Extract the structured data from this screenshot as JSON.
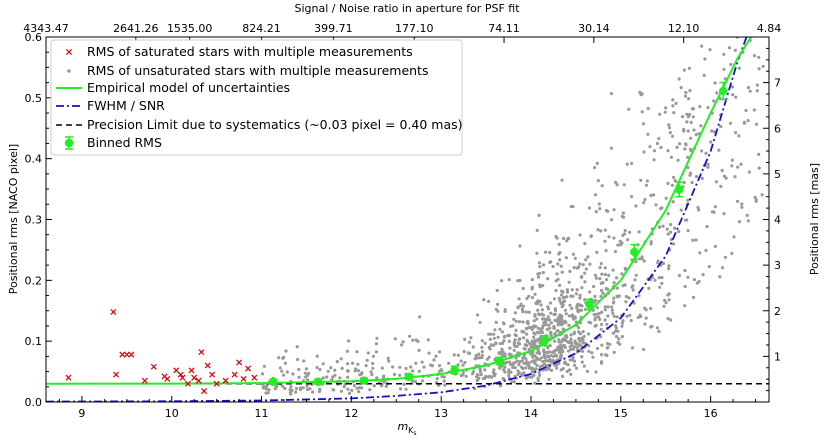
{
  "chart_data": {
    "type": "scatter",
    "title": "Signal / Noise ratio in aperture for PSF fit",
    "xlabel": "m_Ks",
    "xlabel_main": "m",
    "xlabel_sub": "K",
    "xlabel_subsub": "s",
    "ylabel": "Positional rms [NACO pixel]",
    "ylabel_right": "Positional rms [mas]",
    "xlim": [
      8.6,
      16.65
    ],
    "ylim": [
      0.0,
      0.6
    ],
    "ylim_right": [
      0.0,
      8.0
    ],
    "xticks": [
      9,
      10,
      11,
      12,
      13,
      14,
      15,
      16
    ],
    "yticks": [
      0.0,
      0.1,
      0.2,
      0.3,
      0.4,
      0.5,
      0.6
    ],
    "yticks_right": [
      1,
      2,
      3,
      4,
      5,
      6,
      7
    ],
    "top_axis": {
      "label": "Signal / Noise ratio in aperture for PSF fit",
      "tick_positions_mag": [
        8.6,
        9.6,
        10.2,
        11.0,
        11.8,
        12.7,
        13.7,
        14.7,
        15.7,
        16.65
      ],
      "tick_labels": [
        "4343.47",
        "2641.26",
        "1535.00",
        "824.21",
        "399.71",
        "177.10",
        "74.11",
        "30.14",
        "12.10",
        "4.84"
      ]
    },
    "legend": {
      "position": "top-left",
      "entries": [
        "RMS of saturated stars with multiple measurements",
        "RMS of unsaturated stars with multiple measurements",
        "Empirical model of uncertainties",
        "FWHM / SNR",
        "Precision Limit due to systematics (~0.03 pixel = 0.40 mas)",
        "Binned RMS"
      ]
    },
    "colors": {
      "saturated": "#dd0000",
      "unsaturated": "#999999",
      "empirical": "#22ee22",
      "fwhm": "#1111cc",
      "limit": "#000000",
      "binned": "#22ee22"
    },
    "series": [
      {
        "name": "RMS of saturated stars with multiple measurements",
        "type": "scatter",
        "x": [
          8.85,
          9.35,
          9.38,
          9.45,
          9.5,
          9.55,
          9.7,
          9.8,
          9.92,
          9.95,
          10.05,
          10.1,
          10.12,
          10.18,
          10.22,
          10.25,
          10.3,
          10.33,
          10.36,
          10.4,
          10.45,
          10.5,
          10.6,
          10.7,
          10.75,
          10.8,
          10.85,
          10.92
        ],
        "y": [
          0.04,
          0.148,
          0.045,
          0.078,
          0.078,
          0.078,
          0.035,
          0.058,
          0.042,
          0.038,
          0.052,
          0.045,
          0.04,
          0.03,
          0.052,
          0.04,
          0.035,
          0.082,
          0.018,
          0.06,
          0.045,
          0.03,
          0.035,
          0.045,
          0.065,
          0.038,
          0.055,
          0.04
        ]
      },
      {
        "name": "RMS of unsaturated stars with multiple measurements",
        "type": "scatter",
        "note_points": "procedurally distributed cloud (about 1400 stars) between m 10.8 and 16.6, densest near m 14.1"
      },
      {
        "name": "Empirical model of uncertainties",
        "type": "line",
        "x": [
          8.6,
          10.0,
          11.0,
          12.0,
          12.5,
          13.0,
          13.5,
          14.0,
          14.5,
          15.0,
          15.5,
          16.0,
          16.3,
          16.45
        ],
        "y": [
          0.03,
          0.0302,
          0.031,
          0.034,
          0.038,
          0.046,
          0.06,
          0.084,
          0.127,
          0.2,
          0.315,
          0.475,
          0.565,
          0.6
        ]
      },
      {
        "name": "FWHM / SNR",
        "type": "line",
        "x": [
          8.6,
          10.0,
          11.0,
          12.0,
          12.5,
          13.0,
          13.5,
          14.0,
          14.5,
          15.0,
          15.5,
          16.0,
          16.3,
          16.4
        ],
        "y": [
          0.0006,
          0.0012,
          0.0025,
          0.006,
          0.01,
          0.016,
          0.027,
          0.046,
          0.08,
          0.138,
          0.24,
          0.412,
          0.56,
          0.6
        ]
      },
      {
        "name": "Precision Limit due to systematics (~0.03 pixel = 0.40 mas)",
        "type": "hline",
        "y": 0.03
      },
      {
        "name": "Binned RMS",
        "type": "errorbar",
        "x": [
          11.13,
          11.63,
          12.14,
          12.64,
          13.15,
          13.65,
          14.15,
          14.65,
          15.15,
          15.65,
          16.14
        ],
        "y": [
          0.0333,
          0.0333,
          0.0353,
          0.0413,
          0.0527,
          0.0673,
          0.1007,
          0.1607,
          0.2467,
          0.3493,
          0.5113
        ],
        "err": [
          0.004,
          0.004,
          0.004,
          0.004,
          0.006,
          0.006,
          0.008,
          0.008,
          0.012,
          0.012,
          0.014
        ]
      }
    ]
  }
}
